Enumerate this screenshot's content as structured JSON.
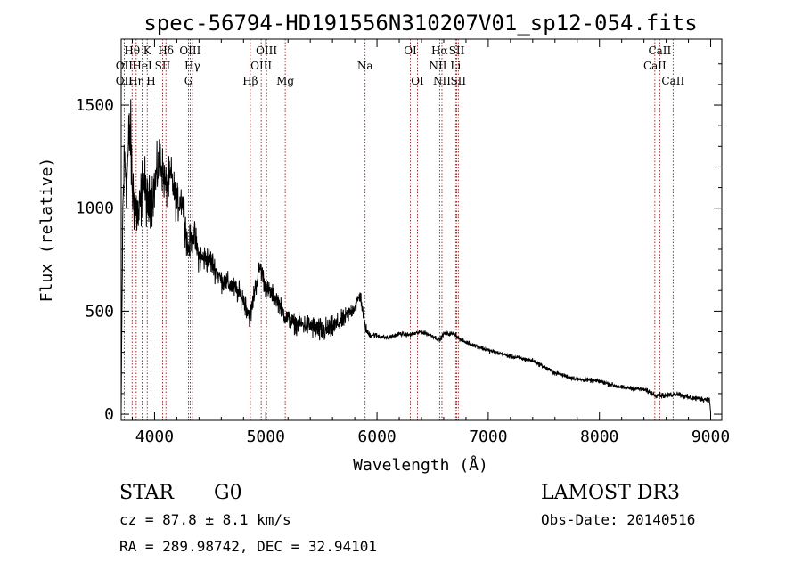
{
  "chart_data": {
    "type": "line",
    "title": "spec-56794-HD191556N310207V01_sp12-054.fits",
    "xlabel": "Wavelength (Å)",
    "ylabel": "Flux (relative)",
    "xlim": [
      3700,
      9100
    ],
    "ylim": [
      -30,
      1820
    ],
    "x_ticks": [
      4000,
      5000,
      6000,
      7000,
      8000,
      9000
    ],
    "x_tick_labels": [
      "4000",
      "5000",
      "6000",
      "7000",
      "8000",
      "9000"
    ],
    "y_ticks": [
      0,
      500,
      1000,
      1500
    ],
    "y_tick_labels": [
      "0",
      "500",
      "1000",
      "1500"
    ],
    "spectrum_knots": {
      "x": [
        3700,
        3715,
        3730,
        3750,
        3780,
        3800,
        3830,
        3860,
        3900,
        3940,
        3970,
        4000,
        4050,
        4100,
        4150,
        4200,
        4250,
        4300,
        4350,
        4400,
        4500,
        4600,
        4700,
        4800,
        4860,
        4900,
        4950,
        5000,
        5100,
        5170,
        5250,
        5400,
        5500,
        5600,
        5700,
        5800,
        5850,
        5890,
        5920,
        6000,
        6100,
        6200,
        6300,
        6400,
        6500,
        6563,
        6600,
        6700,
        6750,
        6800,
        7000,
        7200,
        7400,
        7600,
        7800,
        8000,
        8200,
        8400,
        8500,
        8600,
        8700,
        8800,
        8900,
        8990,
        9000
      ],
      "y": [
        20,
        1000,
        1250,
        1150,
        1400,
        1100,
        1000,
        950,
        1150,
        1000,
        1050,
        1100,
        1250,
        1100,
        1150,
        1020,
        1050,
        800,
        880,
        760,
        750,
        650,
        620,
        560,
        470,
        600,
        720,
        610,
        560,
        480,
        440,
        430,
        400,
        420,
        460,
        520,
        580,
        430,
        390,
        380,
        370,
        390,
        385,
        400,
        380,
        360,
        390,
        390,
        360,
        350,
        310,
        280,
        260,
        200,
        170,
        160,
        130,
        120,
        95,
        90,
        100,
        80,
        75,
        70,
        5
      ],
      "noise_amplitude": [
        0,
        150,
        200,
        200,
        220,
        200,
        180,
        170,
        160,
        150,
        150,
        140,
        130,
        120,
        110,
        100,
        100,
        90,
        90,
        80,
        70,
        60,
        60,
        60,
        60,
        60,
        60,
        55,
        50,
        50,
        50,
        60,
        70,
        60,
        50,
        40,
        40,
        30,
        20,
        15,
        12,
        12,
        12,
        12,
        12,
        12,
        12,
        12,
        12,
        12,
        12,
        12,
        12,
        12,
        12,
        12,
        12,
        12,
        15,
        15,
        15,
        15,
        15,
        15,
        0
      ]
    },
    "spectral_lines": [
      {
        "label": "OII",
        "wavelength": 3727,
        "row": 1
      },
      {
        "label": "OII",
        "wavelength": 3727,
        "row": 2
      },
      {
        "label": "Hθ",
        "wavelength": 3798,
        "row": 0
      },
      {
        "label": "Hη",
        "wavelength": 3835,
        "row": 2
      },
      {
        "label": "HeI",
        "wavelength": 3889,
        "row": 1
      },
      {
        "label": "K",
        "wavelength": 3934,
        "row": 0
      },
      {
        "label": "H",
        "wavelength": 3968,
        "row": 2
      },
      {
        "label": "SII",
        "wavelength": 4072,
        "row": 1
      },
      {
        "label": "Hδ",
        "wavelength": 4102,
        "row": 0
      },
      {
        "label": "G",
        "wavelength": 4305,
        "row": 2
      },
      {
        "label": "OIII",
        "wavelength": 4320,
        "row": 0
      },
      {
        "label": "Hγ",
        "wavelength": 4340,
        "row": 1
      },
      {
        "label": "Hβ",
        "wavelength": 4861,
        "row": 2
      },
      {
        "label": "OIII",
        "wavelength": 4959,
        "row": 1
      },
      {
        "label": "OIII",
        "wavelength": 5007,
        "row": 0
      },
      {
        "label": "Mg",
        "wavelength": 5175,
        "row": 2
      },
      {
        "label": "Na",
        "wavelength": 5893,
        "row": 1
      },
      {
        "label": "OI",
        "wavelength": 6300,
        "row": 0
      },
      {
        "label": "OI",
        "wavelength": 6364,
        "row": 2
      },
      {
        "label": "NII",
        "wavelength": 6548,
        "row": 1
      },
      {
        "label": "Hα",
        "wavelength": 6563,
        "row": 0
      },
      {
        "label": "NII",
        "wavelength": 6584,
        "row": 2
      },
      {
        "label": "SII",
        "wavelength": 6717,
        "row": 0
      },
      {
        "label": "Li",
        "wavelength": 6707,
        "row": 1
      },
      {
        "label": "SII",
        "wavelength": 6731,
        "row": 2
      },
      {
        "label": "CaII",
        "wavelength": 8498,
        "row": 1
      },
      {
        "label": "CaII",
        "wavelength": 8542,
        "row": 0
      },
      {
        "label": "CaII",
        "wavelength": 8662,
        "row": 2
      }
    ]
  },
  "info": {
    "object_class": "STAR",
    "subclass": "G0",
    "survey": "LAMOST DR3",
    "cz": "cz = 87.8 ± 8.1 km/s",
    "obs_date": "Obs-Date: 20140516",
    "coords": "RA = 289.98742, DEC =  32.94101"
  },
  "colors": {
    "line": "#000000",
    "marker": "#8b0000",
    "background": "#ffffff"
  }
}
